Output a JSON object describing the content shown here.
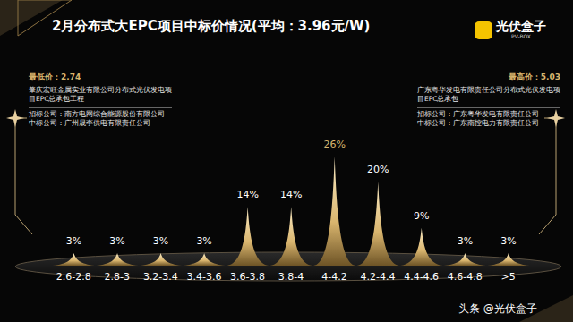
{
  "chart_data": {
    "type": "bar",
    "title": "2月分布式大EPC项目中标价情况(平均：3.96元/W)",
    "categories": [
      "2.6-2.8",
      "2.8-3",
      "3.2-3.4",
      "3.4-3.6",
      "3.6-3.8",
      "3.8-4",
      "4-4.2",
      "4.2-4.4",
      "4.4-4.6",
      "4.6-4.8",
      ">5"
    ],
    "values": [
      3,
      3,
      3,
      3,
      14,
      14,
      26,
      20,
      9,
      3,
      3
    ],
    "value_labels": [
      "3%",
      "3%",
      "3%",
      "3%",
      "14%",
      "14%",
      "26%",
      "20%",
      "9%",
      "3%",
      "3%"
    ],
    "data_labels": true,
    "tick_labels": "x",
    "color": "#d9b56e",
    "annotations": [
      {
        "title": "最低价：2.74",
        "lines": [
          "肇庆宏旺金属实业有限公司分布式光伏发电项目EPC总承包工程",
          "招标公司：南方电网综合能源股份有限公司",
          "中标公司：广州晟李供电有限责任公司"
        ]
      },
      {
        "title": "最高价：5.03",
        "lines": [
          "广东粤华发电有限责任公司分布式光伏发电项目EPC总承包",
          "招标公司：广东粤华发电有限责任公司",
          "中标公司：广东南控电力有限责任公司"
        ]
      }
    ],
    "logo": {
      "name": "光伏盒子",
      "subtitle": "PV-BOX"
    },
    "watermark": "头条 @光伏盒子"
  }
}
